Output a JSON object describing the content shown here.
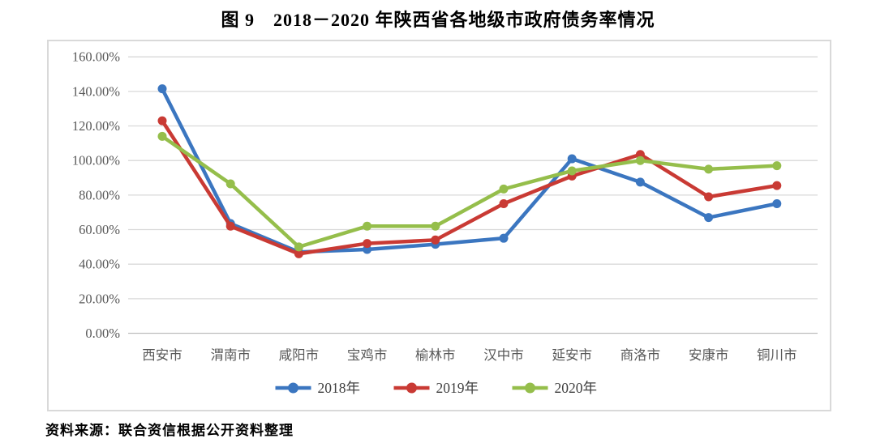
{
  "page": {
    "title": "图 9　2018－2020 年陕西省各地级市政府债务率情况",
    "source_note": "资料来源：联合资信根据公开资料整理"
  },
  "style": {
    "grid_color": "#d9d9d9",
    "axis_line_color": "#bfbfbf",
    "axis_text_color": "#595959",
    "box_border_color": "#d9d9d9"
  },
  "chart_data": {
    "type": "line",
    "title": "图 9　2018－2020 年陕西省各地级市政府债务率情况",
    "categories": [
      "西安市",
      "渭南市",
      "咸阳市",
      "宝鸡市",
      "榆林市",
      "汉中市",
      "延安市",
      "商洛市",
      "安康市",
      "铜川市"
    ],
    "series": [
      {
        "name": "2018年",
        "color": "#3b76c0",
        "values": [
          141.5,
          63.5,
          47,
          48.5,
          51.5,
          55,
          101,
          87.5,
          67,
          75
        ]
      },
      {
        "name": "2019年",
        "color": "#c93a34",
        "values": [
          123,
          62,
          46,
          52,
          54,
          75,
          91,
          103.5,
          79,
          85.5
        ]
      },
      {
        "name": "2020年",
        "color": "#95be4b",
        "values": [
          114,
          86.5,
          50,
          62,
          62,
          83.5,
          94,
          100,
          95,
          97
        ]
      }
    ],
    "ylabel": "",
    "xlabel": "",
    "ylim": [
      0,
      160
    ],
    "ytick_step": 20,
    "ytick_labels": [
      "0.00%",
      "20.00%",
      "40.00%",
      "60.00%",
      "80.00%",
      "100.00%",
      "120.00%",
      "140.00%",
      "160.00%"
    ],
    "grid": "horizontal",
    "legend_position": "bottom"
  }
}
